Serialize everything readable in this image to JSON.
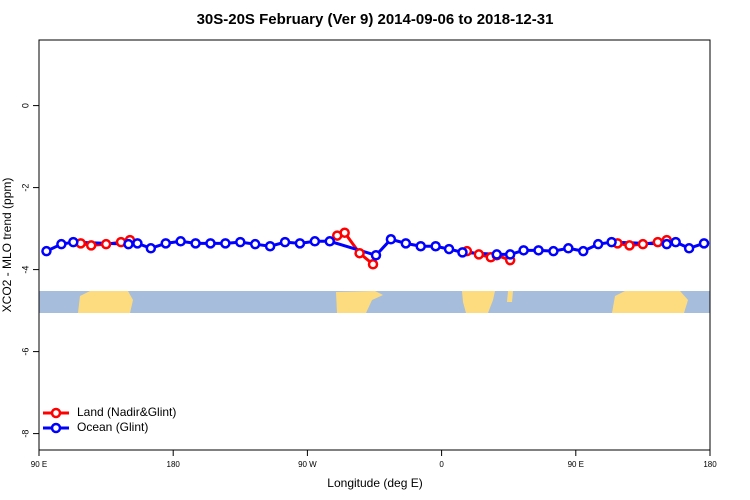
{
  "chart_data": {
    "type": "line",
    "title": "30S-20S February (Ver 9)   2014-09-06 to 2018-12-31",
    "x_label": "Longitude (deg E)",
    "y_label": "XCO2 - MLO trend (ppm)",
    "xlim": [
      90,
      540
    ],
    "xticks": [
      {
        "value": 90,
        "label": "90 E"
      },
      180,
      {
        "value": 270,
        "label": "90 W"
      },
      {
        "value": 360,
        "label": "0"
      },
      {
        "value": 450,
        "label": "90 E"
      },
      {
        "value": 540,
        "label": "180"
      }
    ],
    "ylim": [
      -8.4,
      1.6
    ],
    "yticks": [
      0,
      -2,
      -4,
      -6,
      -8
    ],
    "legend": "bottom-left",
    "series": [
      {
        "name": "Land (Nadir&Glint)",
        "color": "#ff0000",
        "x": [
          118,
          125,
          135,
          145,
          151,
          null,
          290,
          295,
          305,
          314,
          null,
          377,
          385,
          393,
          397,
          406,
          null,
          478,
          486,
          495,
          505,
          511
        ],
        "values": [
          -3.36,
          -3.41,
          -3.38,
          -3.33,
          -3.28,
          null,
          -3.17,
          -3.1,
          -3.6,
          -3.87,
          null,
          -3.55,
          -3.63,
          -3.7,
          -3.65,
          -3.77,
          null,
          -3.36,
          -3.41,
          -3.38,
          -3.33,
          -3.28
        ]
      },
      {
        "name": "Ocean (Glint)",
        "color": "#0000ff",
        "x": [
          95,
          105,
          113,
          150,
          156,
          165,
          175,
          185,
          195,
          205,
          215,
          225,
          235,
          245,
          255,
          265,
          275,
          285,
          316,
          326,
          336,
          346,
          356,
          365,
          374,
          397,
          406,
          415,
          425,
          435,
          445,
          455,
          465,
          474,
          511,
          517,
          526,
          536
        ],
        "values": [
          -3.55,
          -3.38,
          -3.33,
          -3.38,
          -3.36,
          -3.48,
          -3.36,
          -3.31,
          -3.36,
          -3.36,
          -3.36,
          -3.33,
          -3.38,
          -3.43,
          -3.33,
          -3.36,
          -3.31,
          -3.31,
          -3.65,
          -3.26,
          -3.36,
          -3.43,
          -3.43,
          -3.5,
          -3.58,
          -3.63,
          -3.63,
          -3.53,
          -3.53,
          -3.55,
          -3.48,
          -3.55,
          -3.38,
          -3.33,
          -3.38,
          -3.33,
          -3.48,
          -3.36
        ]
      }
    ]
  }
}
